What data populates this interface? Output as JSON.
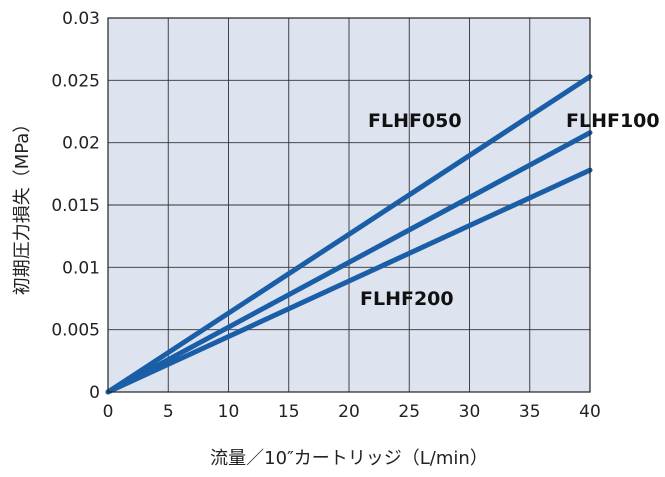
{
  "chart_data": {
    "type": "line",
    "title": "",
    "xlabel": "流量／10″カートリッジ（L/min）",
    "ylabel": "初期圧力損失（MPa）",
    "xlim": [
      0,
      40
    ],
    "ylim": [
      0,
      0.03
    ],
    "x_ticks": [
      "0",
      "5",
      "10",
      "15",
      "20",
      "25",
      "30",
      "35",
      "40"
    ],
    "y_ticks": [
      "0",
      "0.005",
      "0.01",
      "0.015",
      "0.02",
      "0.025",
      "0.03"
    ],
    "grid": true,
    "plot_background": "#dde3ef",
    "line_color": "#1a5ea8",
    "series": [
      {
        "name": "FLHF050",
        "x": [
          0,
          40
        ],
        "y": [
          0,
          0.0253
        ]
      },
      {
        "name": "FLHF100",
        "x": [
          0,
          40
        ],
        "y": [
          0,
          0.0208
        ]
      },
      {
        "name": "FLHF200",
        "x": [
          0,
          40
        ],
        "y": [
          0,
          0.0178
        ]
      }
    ]
  }
}
